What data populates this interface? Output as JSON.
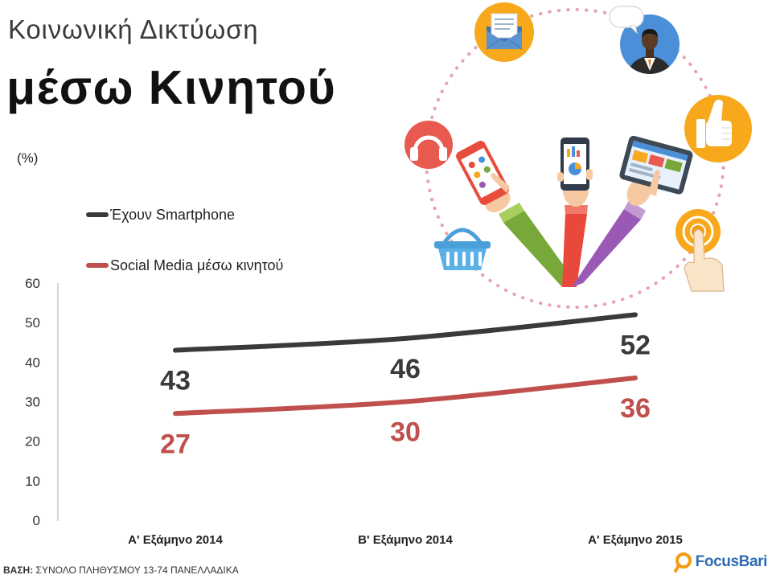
{
  "chart_data": {
    "type": "line",
    "title_line1": "Κοινωνική Δικτύωση",
    "title_line2": "μέσω Κινητού",
    "ylabel": "(%)",
    "categories": [
      "Α' Εξάμηνο 2014",
      "Β' Εξάμηνο 2014",
      "Α' Εξάμηνο 2015"
    ],
    "series": [
      {
        "name": "Έχουν Smartphone",
        "values": [
          43,
          46,
          52
        ],
        "color": "#3a3a3a"
      },
      {
        "name": "Social Media μέσω κινητού",
        "values": [
          27,
          30,
          36
        ],
        "color": "#c0504d"
      }
    ],
    "ylim": [
      0,
      60
    ],
    "yticks": [
      0,
      10,
      20,
      30,
      40,
      50,
      60
    ],
    "grid": false,
    "legend": "top-left",
    "data_labels": true
  },
  "footer": {
    "base_label": "ΒΑΣΗ:",
    "base_text": "ΣΥΝΟΛΟ ΠΛΗΘΥΣΜΟΥ 13-74 ΠΑΝΕΛΛΑΔΙΚΑ"
  },
  "logo": {
    "text": "FocusBari",
    "color": "#2e6bb0",
    "mark_color": "#f39c12"
  },
  "illustration": {
    "icons": [
      "envelope-icon",
      "person-icon",
      "speech-bubble-icon",
      "thumbs-up-icon",
      "headphones-icon",
      "shopping-basket-icon",
      "touch-icon",
      "smartphone-icon",
      "tablet-icon"
    ],
    "colors": {
      "orange": "#f7a81b",
      "blue": "#4a8fd8",
      "red": "#e85a4f",
      "dots": "#e8a4ae"
    }
  }
}
